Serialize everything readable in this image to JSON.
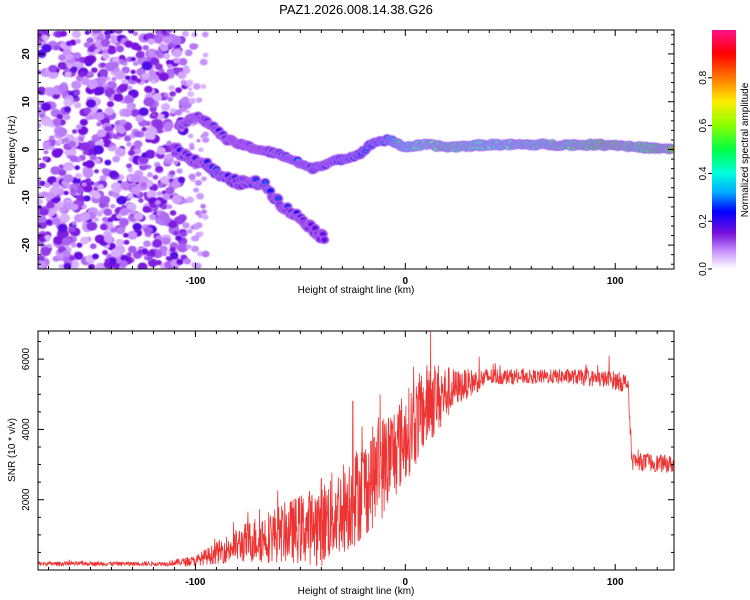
{
  "chart_data": [
    {
      "type": "heatmap",
      "title": "PAZ1.2026.008.14.38.G26",
      "xlabel": "Height of straight line (km)",
      "ylabel": "Frequency (Hz)",
      "xlim": [
        -175,
        128
      ],
      "ylim": [
        -25,
        25
      ],
      "xticks": [
        -100,
        0,
        100
      ],
      "yticks": [
        -20,
        -10,
        0,
        10,
        20
      ],
      "colorbar": {
        "label": "Normalized spectral amplitude",
        "range": [
          0,
          1
        ],
        "ticks": [
          "0.0",
          "0.2",
          "0.4",
          "0.6",
          "0.8"
        ]
      },
      "features": {
        "noise_region_x": [
          -175,
          -105
        ],
        "main_track": [
          {
            "x": -108,
            "f": 5.0,
            "a": 0.2
          },
          {
            "x": -100,
            "f": 7.0,
            "a": 0.22
          },
          {
            "x": -92,
            "f": 5.0,
            "a": 0.25
          },
          {
            "x": -85,
            "f": 2.0,
            "a": 0.2
          },
          {
            "x": -78,
            "f": 1.0,
            "a": 0.22
          },
          {
            "x": -70,
            "f": 0.0,
            "a": 0.25
          },
          {
            "x": -60,
            "f": -1.0,
            "a": 0.28
          },
          {
            "x": -52,
            "f": -2.5,
            "a": 0.35
          },
          {
            "x": -45,
            "f": -4.0,
            "a": 0.3
          },
          {
            "x": -38,
            "f": -3.0,
            "a": 0.3
          },
          {
            "x": -30,
            "f": -2.0,
            "a": 0.32
          },
          {
            "x": -22,
            "f": -1.0,
            "a": 0.35
          },
          {
            "x": -15,
            "f": 1.5,
            "a": 0.4
          },
          {
            "x": -8,
            "f": 2.0,
            "a": 0.45
          },
          {
            "x": 0,
            "f": 0.5,
            "a": 0.6
          },
          {
            "x": 10,
            "f": 1.0,
            "a": 0.7
          },
          {
            "x": 20,
            "f": 0.5,
            "a": 0.75
          },
          {
            "x": 40,
            "f": 1.0,
            "a": 0.65
          },
          {
            "x": 60,
            "f": 1.0,
            "a": 0.7
          },
          {
            "x": 80,
            "f": 1.0,
            "a": 0.75
          },
          {
            "x": 100,
            "f": 1.0,
            "a": 0.85
          },
          {
            "x": 110,
            "f": 0.5,
            "a": 0.75
          },
          {
            "x": 128,
            "f": 0.0,
            "a": 0.85
          }
        ],
        "branch_track": [
          {
            "x": -110,
            "f": 0.0,
            "a": 0.2
          },
          {
            "x": -102,
            "f": -2.0,
            "a": 0.22
          },
          {
            "x": -95,
            "f": -3.0,
            "a": 0.25
          },
          {
            "x": -87,
            "f": -6.0,
            "a": 0.3
          },
          {
            "x": -78,
            "f": -7.0,
            "a": 0.22
          },
          {
            "x": -68,
            "f": -7.0,
            "a": 0.3
          },
          {
            "x": -58,
            "f": -12.0,
            "a": 0.25
          },
          {
            "x": -48,
            "f": -15.0,
            "a": 0.2
          },
          {
            "x": -38,
            "f": -19.0,
            "a": 0.15
          }
        ]
      }
    },
    {
      "type": "line",
      "xlabel": "Height of straight line (km)",
      "ylabel": "SNR (10 * v/v)",
      "xlim": [
        -175,
        128
      ],
      "ylim": [
        0,
        6800
      ],
      "xticks": [
        -100,
        0,
        100
      ],
      "yticks": [
        2000,
        4000,
        6000
      ],
      "series": [
        {
          "name": "SNR",
          "color": "#ee3333",
          "envelope": [
            {
              "x": -175,
              "mean": 180,
              "spread": 60
            },
            {
              "x": -115,
              "mean": 180,
              "spread": 60
            },
            {
              "x": -100,
              "mean": 260,
              "spread": 150
            },
            {
              "x": -85,
              "mean": 600,
              "spread": 400
            },
            {
              "x": -70,
              "mean": 900,
              "spread": 700
            },
            {
              "x": -55,
              "mean": 1100,
              "spread": 900
            },
            {
              "x": -40,
              "mean": 1300,
              "spread": 1200
            },
            {
              "x": -25,
              "mean": 2000,
              "spread": 1400
            },
            {
              "x": -10,
              "mean": 3000,
              "spread": 1500
            },
            {
              "x": 0,
              "mean": 3800,
              "spread": 1300
            },
            {
              "x": 12,
              "mean": 4800,
              "spread": 1200
            },
            {
              "x": 25,
              "mean": 5200,
              "spread": 500
            },
            {
              "x": 40,
              "mean": 5500,
              "spread": 250
            },
            {
              "x": 60,
              "mean": 5500,
              "spread": 200
            },
            {
              "x": 80,
              "mean": 5500,
              "spread": 220
            },
            {
              "x": 100,
              "mean": 5400,
              "spread": 260
            },
            {
              "x": 106,
              "mean": 5300,
              "spread": 300
            },
            {
              "x": 108,
              "mean": 3100,
              "spread": 250
            },
            {
              "x": 128,
              "mean": 3000,
              "spread": 250
            }
          ],
          "peaks": [
            {
              "x": -40,
              "y": 2600
            },
            {
              "x": -25,
              "y": 4800
            },
            {
              "x": -12,
              "y": 5000
            },
            {
              "x": 12,
              "y": 6800
            },
            {
              "x": 97,
              "y": 6100
            }
          ]
        }
      ]
    }
  ]
}
